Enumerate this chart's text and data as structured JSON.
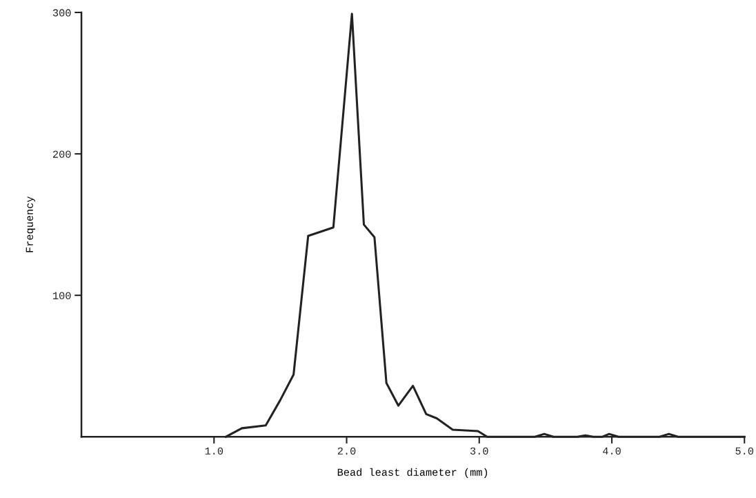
{
  "chart_data": {
    "type": "line",
    "xlabel": "Bead least diameter (mm)",
    "ylabel": "Frequency",
    "color": "#222222",
    "x": [
      1.09,
      1.21,
      1.39,
      1.5,
      1.6,
      1.71,
      1.9,
      2.04,
      2.13,
      2.21,
      2.3,
      2.39,
      2.5,
      2.6,
      2.68,
      2.8,
      2.99,
      3.06,
      3.42,
      3.49,
      3.56,
      3.74,
      3.8,
      3.86,
      3.93,
      3.98,
      4.05,
      4.36,
      4.43,
      4.5,
      5.0
    ],
    "values": [
      0,
      6,
      8,
      26,
      44,
      142,
      148,
      299,
      150,
      141,
      38,
      22,
      36,
      16,
      13,
      5,
      4,
      0,
      0,
      2,
      0,
      0,
      1,
      0,
      0,
      2,
      0,
      0,
      2,
      0,
      0
    ],
    "xlim": [
      0,
      5.0
    ],
    "ylim": [
      0,
      300
    ],
    "xticks": [
      {
        "value": 1.0,
        "label": "1.0"
      },
      {
        "value": 2.0,
        "label": "2.0"
      },
      {
        "value": 3.0,
        "label": "3.0"
      },
      {
        "value": 4.0,
        "label": "4.0"
      },
      {
        "value": 5.0,
        "label": "5.0"
      }
    ],
    "yticks": [
      100,
      200,
      300
    ],
    "grid": false,
    "marker": "none",
    "line_style": "solid"
  }
}
